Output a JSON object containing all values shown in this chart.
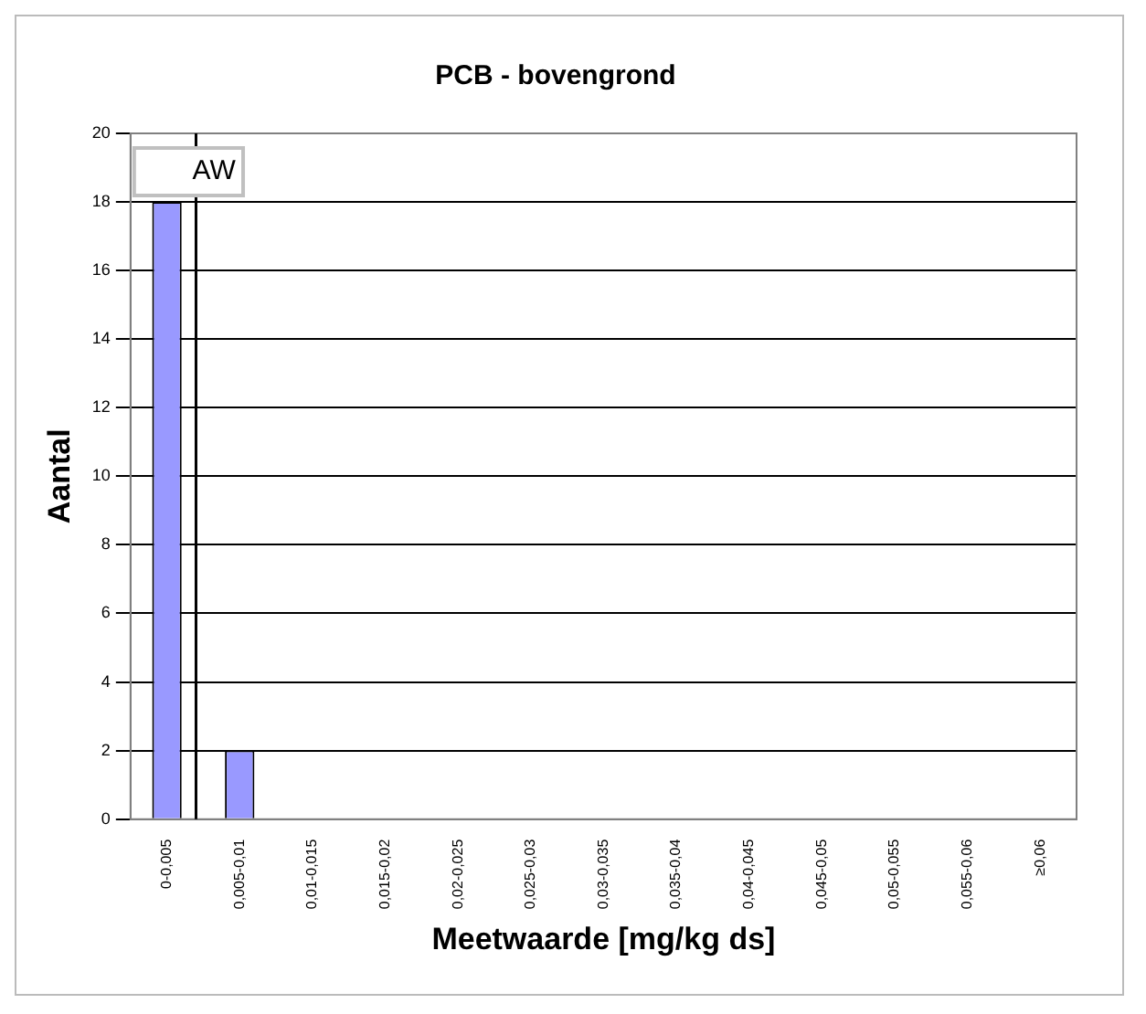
{
  "chart_data": {
    "type": "bar",
    "title": "PCB - bovengrond",
    "xlabel": "Meetwaarde [mg/kg ds]",
    "ylabel": "Aantal",
    "categories": [
      "0-0,005",
      "0,005-0,01",
      "0,01-0,015",
      "0,015-0,02",
      "0,02-0,025",
      "0,025-0,03",
      "0,03-0,035",
      "0,035-0,04",
      "0,04-0,045",
      "0,045-0,05",
      "0,05-0,055",
      "0,055-0,06",
      "≥0,06"
    ],
    "values": [
      18,
      2,
      0,
      0,
      0,
      0,
      0,
      0,
      0,
      0,
      0,
      0,
      0
    ],
    "color": "#9999ff",
    "ylim": [
      0,
      20
    ],
    "yticks": [
      0,
      2,
      4,
      6,
      8,
      10,
      12,
      14,
      16,
      18,
      20
    ],
    "grid": "y",
    "ref_lines": [
      {
        "axis": "x",
        "value": "0-0,005",
        "label": "AW",
        "color": "#000000"
      }
    ]
  }
}
